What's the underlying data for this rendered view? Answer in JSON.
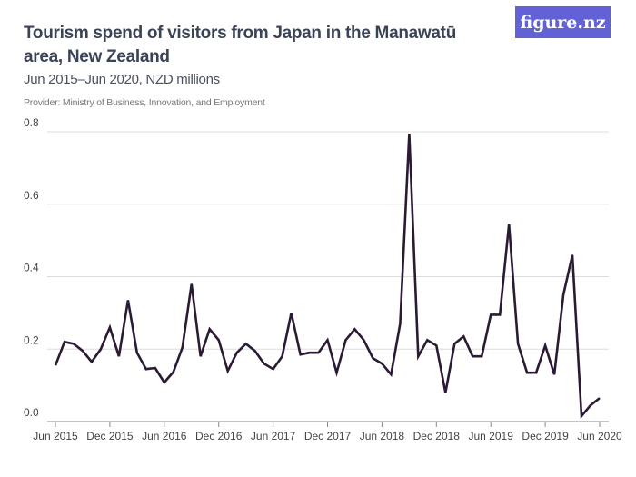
{
  "header": {
    "title": "Tourism spend of visitors from Japan in the Manawatū area, New Zealand",
    "subtitle": "Jun 2015–Jun 2020, NZD millions",
    "provider": "Provider: Ministry of Business, Innovation, and Employment",
    "logo": "figure.nz"
  },
  "chart_data": {
    "type": "line",
    "title": "Tourism spend of visitors from Japan in the Manawatū area, New Zealand",
    "subtitle": "Jun 2015–Jun 2020, NZD millions",
    "x_start": "Jun 2015",
    "x_end": "Jun 2020",
    "x_frequency": "monthly",
    "x_tick_labels": [
      "Jun 2015",
      "Dec 2015",
      "Jun 2016",
      "Dec 2016",
      "Jun 2017",
      "Dec 2017",
      "Jun 2018",
      "Dec 2018",
      "Jun 2019",
      "Dec 2019",
      "Jun 2020"
    ],
    "y_tick_labels": [
      "0.0",
      "0.2",
      "0.4",
      "0.6",
      "0.8"
    ],
    "ylim": [
      0,
      0.8
    ],
    "grid": "horizontal",
    "line_color": "#2a1a33",
    "values": [
      0.155,
      0.22,
      0.215,
      0.195,
      0.165,
      0.2,
      0.26,
      0.18,
      0.335,
      0.19,
      0.145,
      0.148,
      0.108,
      0.137,
      0.205,
      0.38,
      0.18,
      0.255,
      0.225,
      0.14,
      0.19,
      0.215,
      0.195,
      0.16,
      0.145,
      0.18,
      0.3,
      0.185,
      0.19,
      0.19,
      0.225,
      0.135,
      0.225,
      0.255,
      0.225,
      0.175,
      0.16,
      0.13,
      0.27,
      0.795,
      0.18,
      0.225,
      0.21,
      0.08,
      0.215,
      0.235,
      0.18,
      0.18,
      0.295,
      0.295,
      0.545,
      0.215,
      0.135,
      0.135,
      0.21,
      0.13,
      0.35,
      0.46,
      0.015,
      0.045,
      0.065
    ]
  }
}
